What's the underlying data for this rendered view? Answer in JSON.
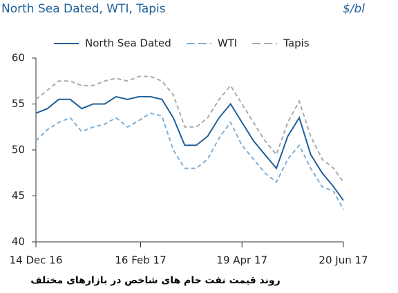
{
  "chart_data": {
    "type": "line",
    "title": "North Sea Dated, WTI, Tapis",
    "units": "$/bl",
    "caption": "روند قیمت نفت خام های شاخص در بازارهای مختلف",
    "x": [
      "2016-12-14",
      "2016-12-21",
      "2016-12-28",
      "2017-01-04",
      "2017-01-11",
      "2017-01-18",
      "2017-01-25",
      "2017-02-01",
      "2017-02-08",
      "2017-02-15",
      "2017-02-22",
      "2017-03-01",
      "2017-03-08",
      "2017-03-15",
      "2017-03-22",
      "2017-03-29",
      "2017-04-05",
      "2017-04-12",
      "2017-04-19",
      "2017-04-26",
      "2017-05-03",
      "2017-05-10",
      "2017-05-17",
      "2017-05-24",
      "2017-05-31",
      "2017-06-07",
      "2017-06-14",
      "2017-06-20"
    ],
    "series": [
      {
        "name": "North Sea Dated",
        "color": "#1f5f99",
        "dash": false,
        "values": [
          54,
          54.5,
          55.5,
          55.5,
          54.5,
          55,
          55,
          55.8,
          55.5,
          55.8,
          55.8,
          55.5,
          53.5,
          50.5,
          50.5,
          51.5,
          53.5,
          55,
          53,
          51,
          49.5,
          48,
          51.5,
          53.5,
          49.5,
          47.5,
          46,
          44.5
        ]
      },
      {
        "name": "WTI",
        "color": "#7eafd6",
        "dash": true,
        "values": [
          51,
          52.2,
          53,
          53.5,
          52,
          52.5,
          52.8,
          53.5,
          52.5,
          53.2,
          54,
          53.7,
          50,
          48,
          48,
          49,
          51.3,
          53,
          50.5,
          49,
          47.5,
          46.5,
          49,
          50.5,
          48,
          46,
          45.5,
          43.5
        ]
      },
      {
        "name": "Tapis",
        "color": "#aaaaaa",
        "dash": true,
        "values": [
          55.5,
          56.5,
          57.5,
          57.5,
          57,
          57,
          57.5,
          57.8,
          57.5,
          58,
          58,
          57.5,
          56,
          52.5,
          52.5,
          53.5,
          55.5,
          57,
          55,
          53,
          51,
          49.5,
          53,
          55.3,
          51.5,
          49,
          48,
          46.5
        ]
      }
    ],
    "xlim": [
      "2016-12-14",
      "2017-06-20"
    ],
    "xticks": [
      {
        "value": "2016-12-14",
        "label": "14 Dec 16"
      },
      {
        "value": "2017-02-16",
        "label": "16 Feb 17"
      },
      {
        "value": "2017-04-19",
        "label": "19 Apr 17"
      },
      {
        "value": "2017-06-20",
        "label": "20 Jun 17"
      }
    ],
    "ylim": [
      40,
      60
    ],
    "yticks": [
      40,
      45,
      50,
      55,
      60
    ],
    "grid": false,
    "legend": "top"
  }
}
